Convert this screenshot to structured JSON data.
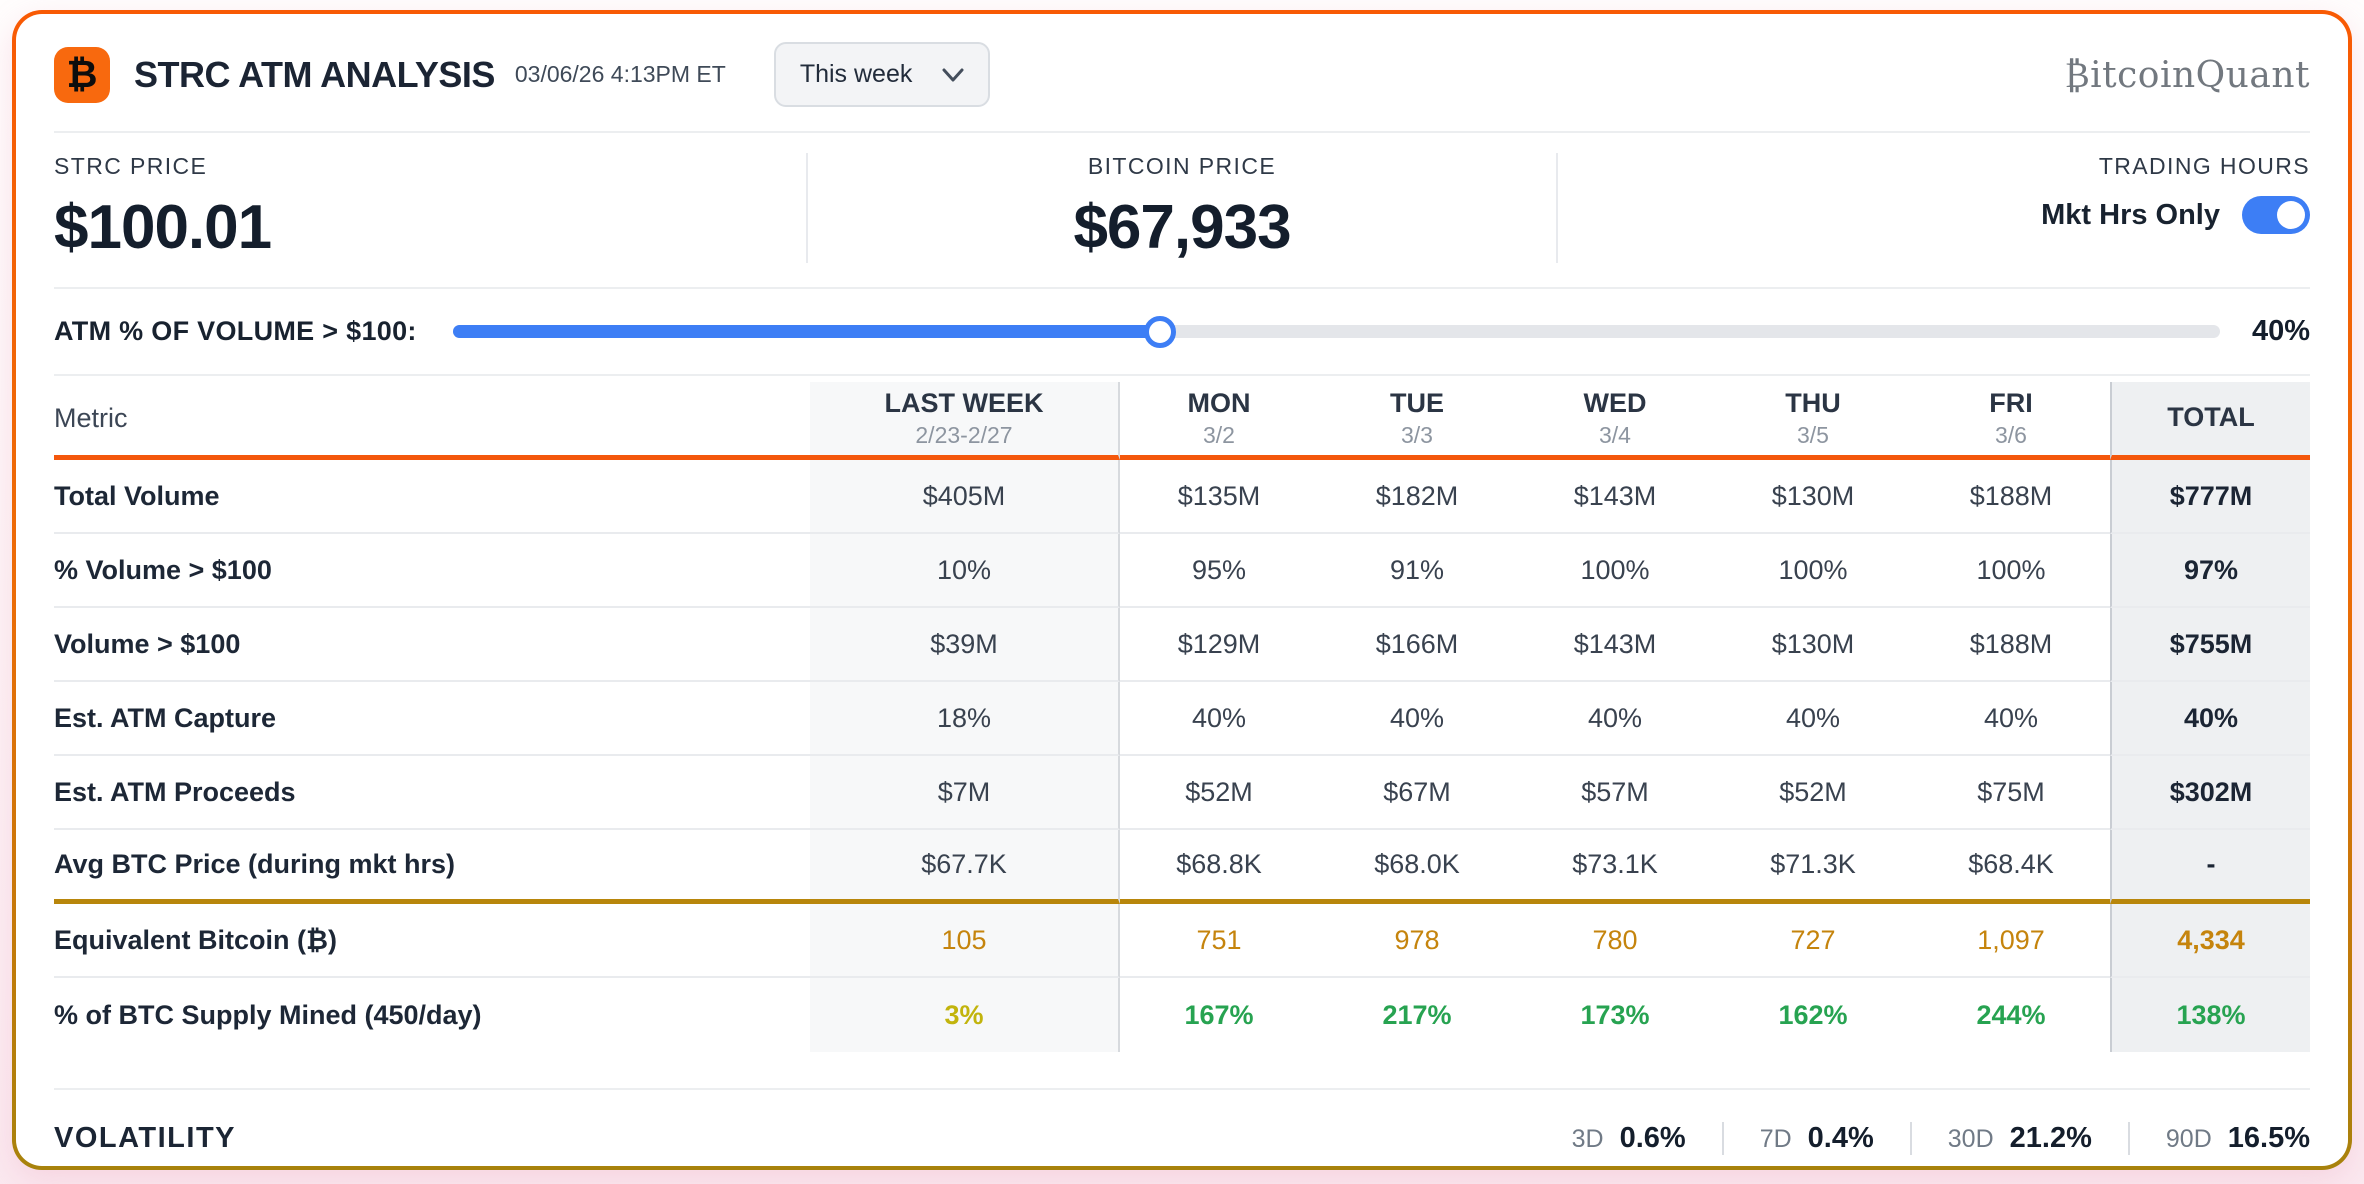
{
  "header": {
    "logo_glyph": "₿",
    "title": "STRC ATM ANALYSIS",
    "timestamp": "03/06/26 4:13PM ET",
    "period_selector": "This week",
    "brand": "₿itcoinQuant"
  },
  "prices": {
    "strc_label": "STRC PRICE",
    "strc_value": "$100.01",
    "btc_label": "BITCOIN PRICE",
    "btc_value": "$67,933",
    "trading_hours_label": "TRADING HOURS",
    "mkt_hrs_label": "Mkt Hrs Only",
    "toggle_on": true
  },
  "slider": {
    "label": "ATM % OF VOLUME > $100:",
    "percent": 40,
    "value_label": "40%"
  },
  "table": {
    "metric_header": "Metric",
    "columns": [
      {
        "label": "LAST WEEK",
        "sub": "2/23-2/27"
      },
      {
        "label": "MON",
        "sub": "3/2"
      },
      {
        "label": "TUE",
        "sub": "3/3"
      },
      {
        "label": "WED",
        "sub": "3/4"
      },
      {
        "label": "THU",
        "sub": "3/5"
      },
      {
        "label": "FRI",
        "sub": "3/6"
      },
      {
        "label": "TOTAL",
        "sub": ""
      }
    ],
    "rows": [
      {
        "metric": "Total Volume",
        "style": "plain",
        "values": [
          "$405M",
          "$135M",
          "$182M",
          "$143M",
          "$130M",
          "$188M",
          "$777M"
        ]
      },
      {
        "metric": "% Volume > $100",
        "style": "plain",
        "values": [
          "10%",
          "95%",
          "91%",
          "100%",
          "100%",
          "100%",
          "97%"
        ]
      },
      {
        "metric": "Volume > $100",
        "style": "plain",
        "values": [
          "$39M",
          "$129M",
          "$166M",
          "$143M",
          "$130M",
          "$188M",
          "$755M"
        ]
      },
      {
        "metric": "Est. ATM Capture",
        "style": "plain",
        "values": [
          "18%",
          "40%",
          "40%",
          "40%",
          "40%",
          "40%",
          "40%"
        ]
      },
      {
        "metric": "Est. ATM Proceeds",
        "style": "plain",
        "values": [
          "$7M",
          "$52M",
          "$67M",
          "$57M",
          "$52M",
          "$75M",
          "$302M"
        ]
      },
      {
        "metric": "Avg BTC Price (during mkt hrs)",
        "style": "plain",
        "amber_border": true,
        "values": [
          "$67.7K",
          "$68.8K",
          "$68.0K",
          "$73.1K",
          "$71.3K",
          "$68.4K",
          "-"
        ]
      },
      {
        "metric": "Equivalent Bitcoin (₿)",
        "style": "btc",
        "values": [
          "105",
          "751",
          "978",
          "780",
          "727",
          "1,097",
          "4,334"
        ]
      },
      {
        "metric": "% of BTC Supply Mined (450/day)",
        "style": "supply",
        "values": [
          "3%",
          "167%",
          "217%",
          "173%",
          "162%",
          "244%",
          "138%"
        ]
      }
    ]
  },
  "volatility": {
    "label": "VOLATILITY",
    "items": [
      {
        "period": "3D",
        "value": "0.6%"
      },
      {
        "period": "7D",
        "value": "0.4%"
      },
      {
        "period": "30D",
        "value": "21.2%"
      },
      {
        "period": "90D",
        "value": "16.5%"
      }
    ]
  },
  "colors": {
    "accent_orange": "#f8690e",
    "border_gradient_top": "#f85a04",
    "border_gradient_bottom": "#a8820c",
    "amber_divider": "#b8860b",
    "blue": "#3d7ef5",
    "green": "#27a351",
    "yellow": "#c2b40d",
    "amber_text": "#c5840d",
    "lastweek_bg": "#f7f8f9",
    "total_bg": "#eef0f2"
  }
}
